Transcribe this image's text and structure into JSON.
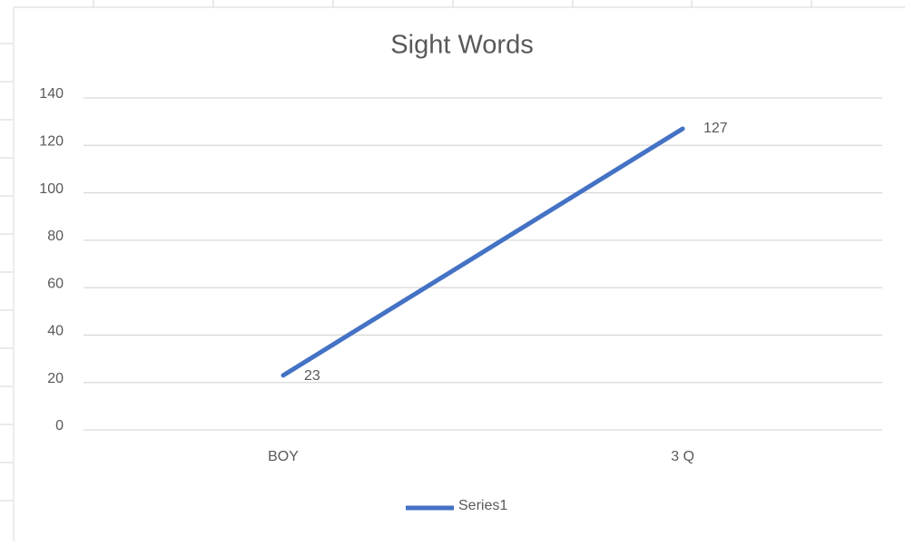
{
  "chart_data": {
    "type": "line",
    "title": "Sight Words",
    "categories": [
      "BOY",
      "3 Q"
    ],
    "series": [
      {
        "name": "Series1",
        "color": "#4472c4",
        "values": [
          23,
          127
        ]
      }
    ],
    "ylim": [
      0,
      140
    ],
    "yticks": [
      0,
      20,
      40,
      60,
      80,
      100,
      120,
      140
    ],
    "grid": true,
    "legend": "bottom"
  }
}
